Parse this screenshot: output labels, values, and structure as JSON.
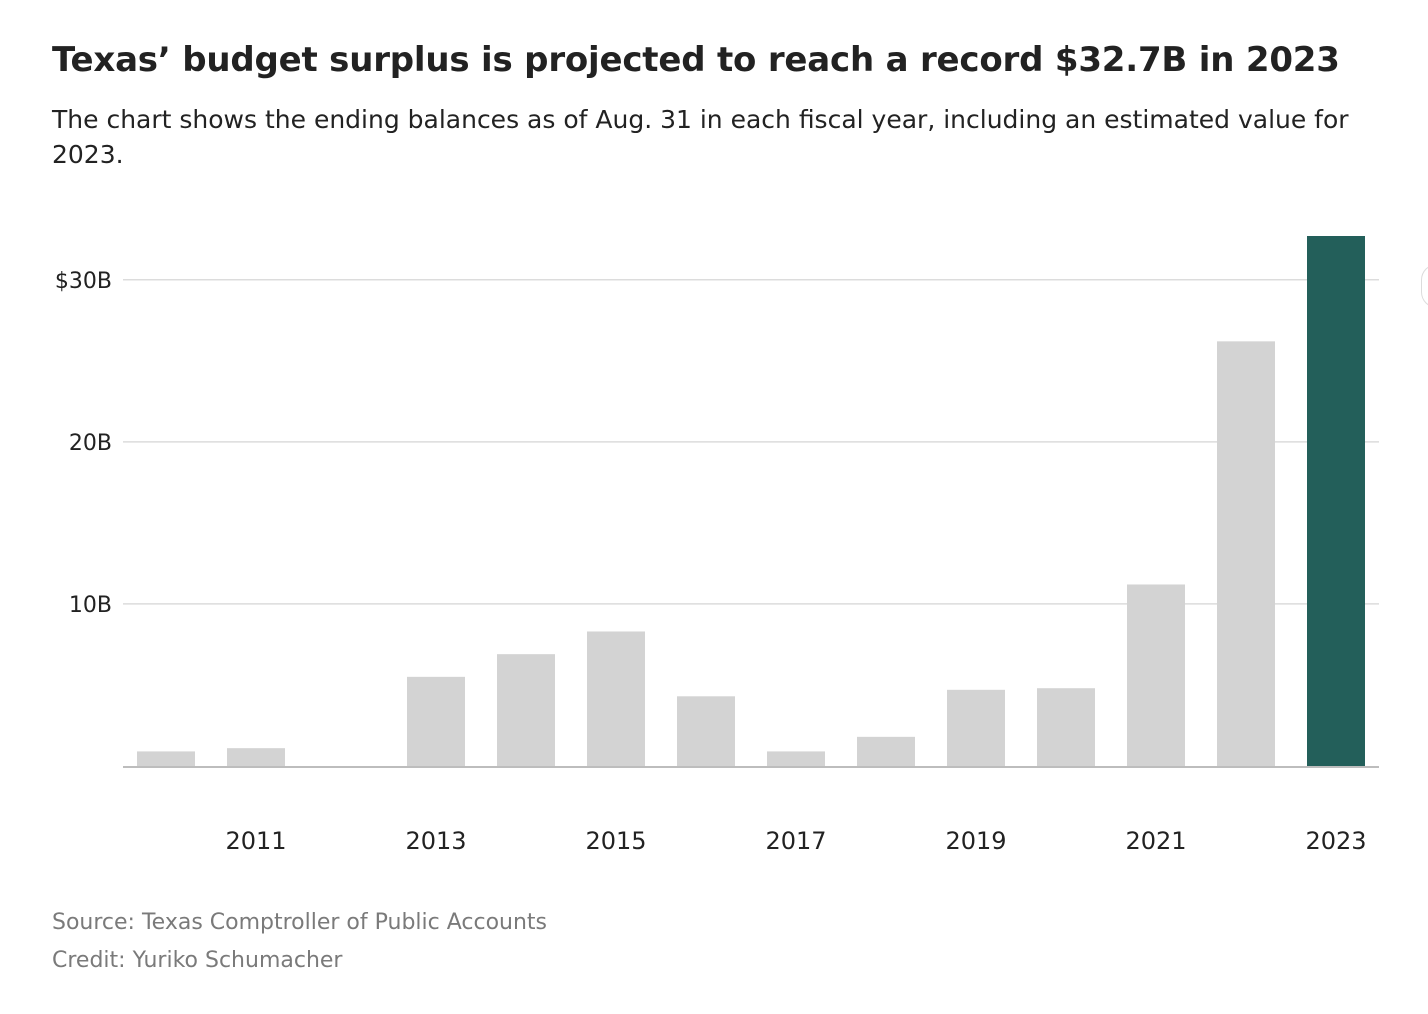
{
  "header": {
    "title": "Texas’ budget surplus is projected to reach a record $32.7B in 2023",
    "subtitle": "The chart shows the ending balances as of Aug. 31 in each fiscal year, including an estimated value for 2023."
  },
  "footer": {
    "source": "Source: Texas Comptroller of Public Accounts",
    "credit": "Credit: Yuriko Schumacher"
  },
  "colors": {
    "bar_default": "#d3d3d3",
    "bar_highlight": "#235f5a",
    "gridline": "#dcdcdc",
    "baseline": "#bdbdbd",
    "text": "#222222",
    "muted_text": "#7a7a7a"
  },
  "chart_data": {
    "type": "bar",
    "title": "Texas’ budget surplus is projected to reach a record $32.7B in 2023",
    "subtitle": "The chart shows the ending balances as of Aug. 31 in each fiscal year, including an estimated value for 2023.",
    "xlabel": "",
    "ylabel": "",
    "categories": [
      "2010",
      "2011",
      "2012",
      "2013",
      "2014",
      "2015",
      "2016",
      "2017",
      "2018",
      "2019",
      "2020",
      "2021",
      "2022",
      "2023"
    ],
    "x_tick_labels": [
      "2011",
      "2013",
      "2015",
      "2017",
      "2019",
      "2021",
      "2023"
    ],
    "values": [
      0.9,
      1.1,
      0,
      5.5,
      6.9,
      8.3,
      4.3,
      0.9,
      1.8,
      4.7,
      4.8,
      11.2,
      26.2,
      32.7
    ],
    "highlight_category": "2023",
    "ylim": [
      0,
      32.7
    ],
    "y_ticks": [
      {
        "value": 10,
        "label": "10B"
      },
      {
        "value": 20,
        "label": "20B"
      },
      {
        "value": 30,
        "label": "$30B"
      }
    ],
    "grid": true,
    "legend": "none"
  }
}
